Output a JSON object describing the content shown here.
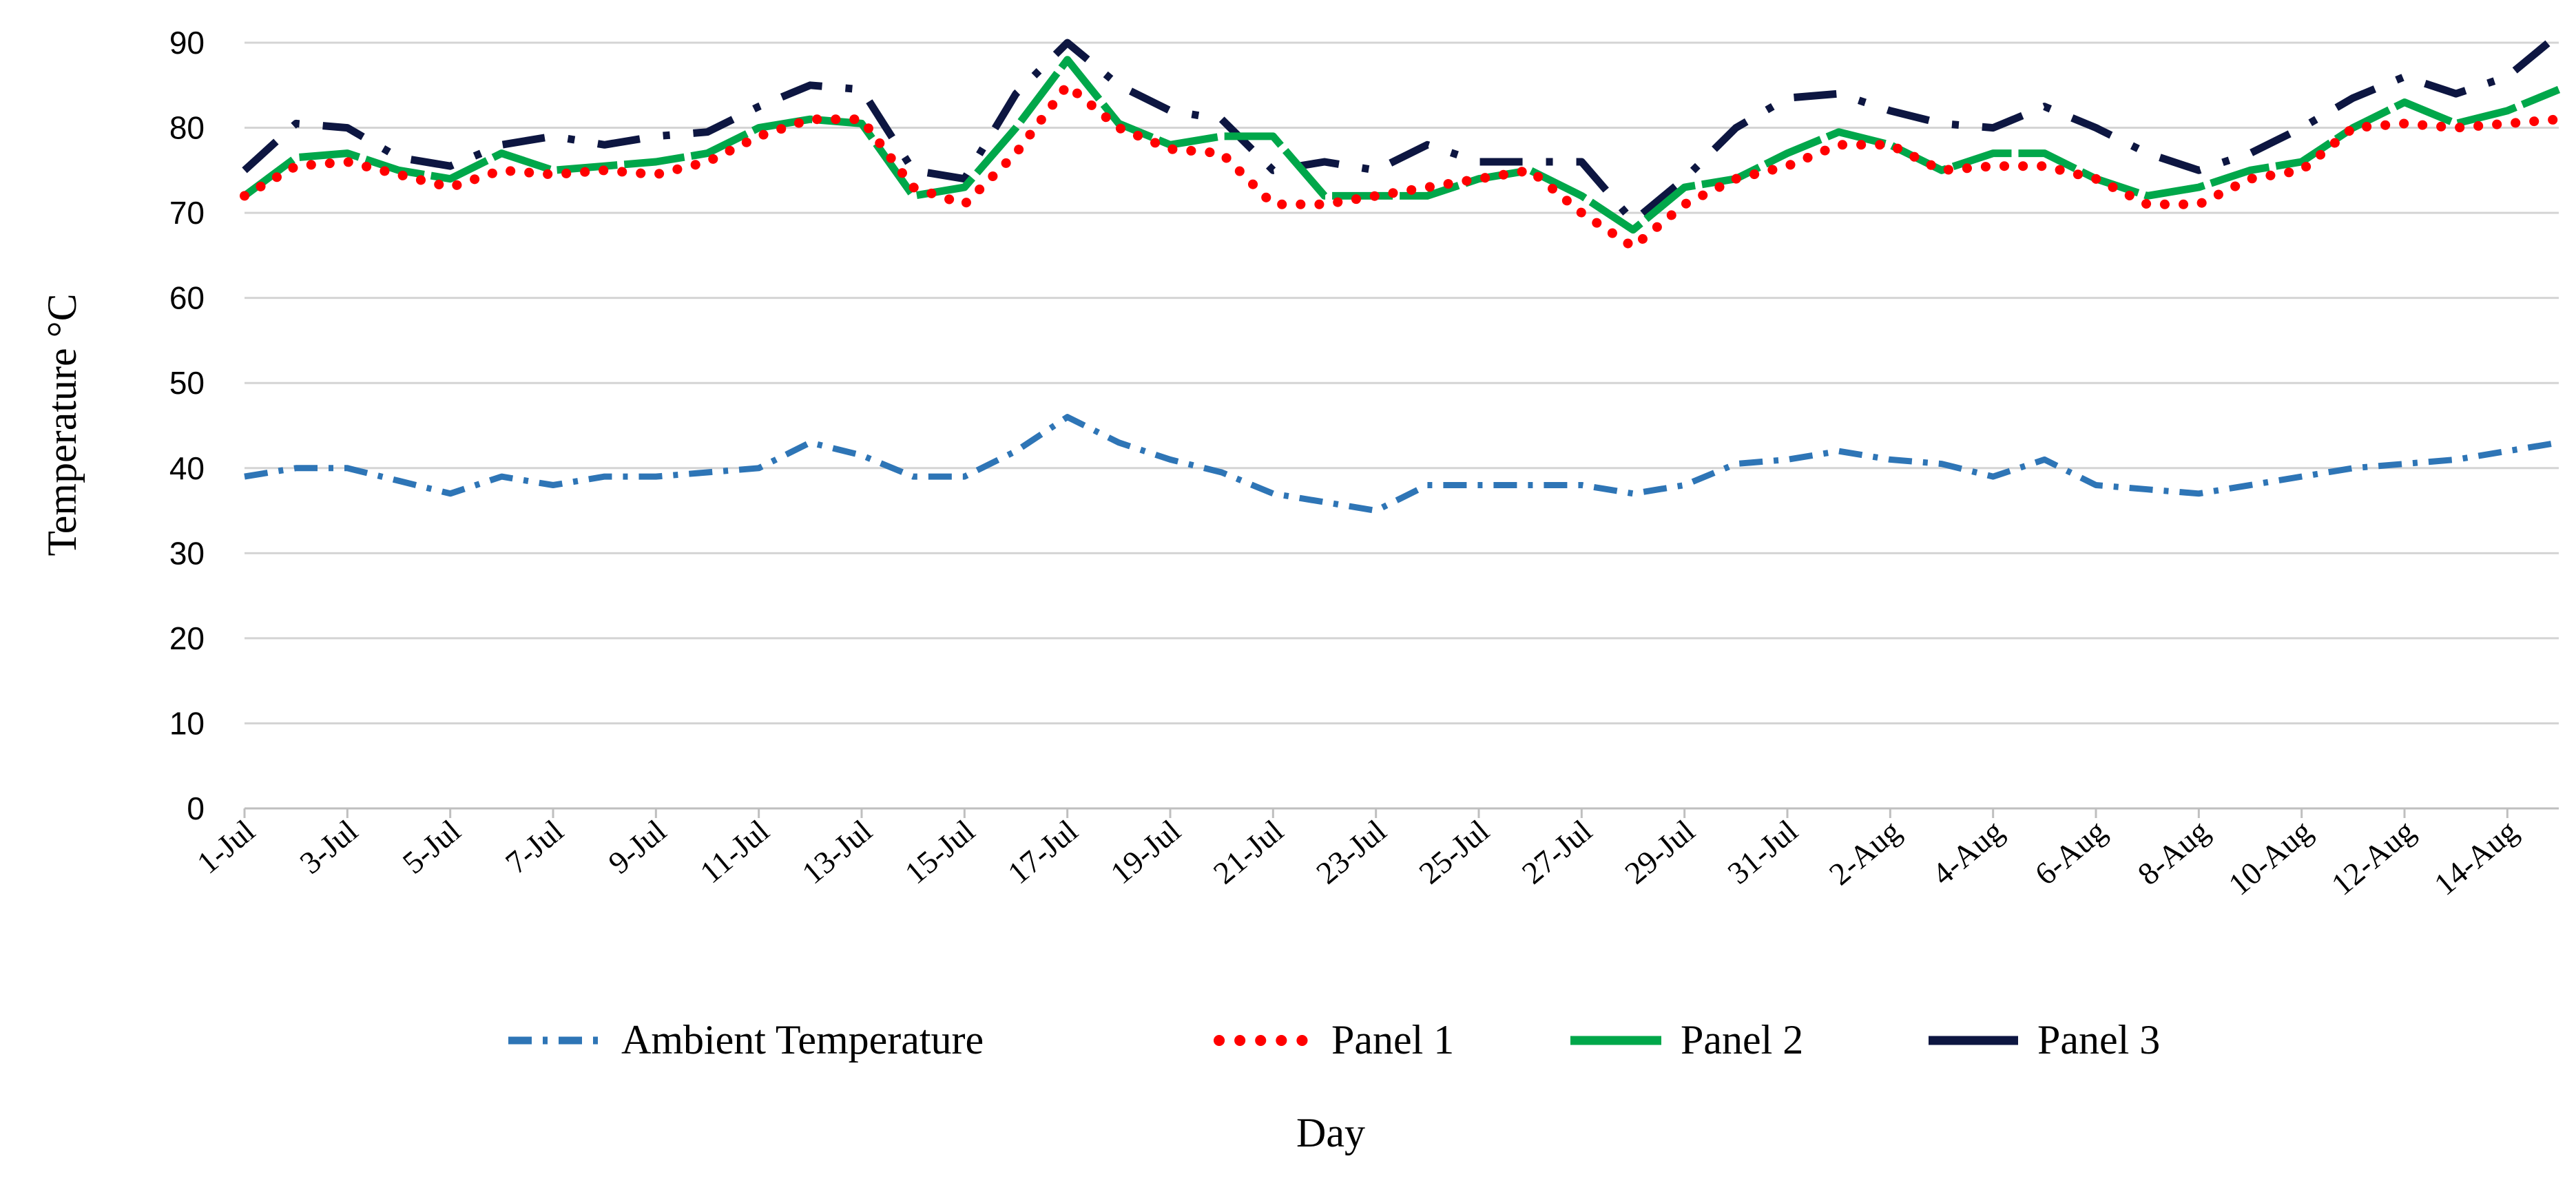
{
  "chart_data": {
    "type": "line",
    "title": "",
    "xlabel": "Day",
    "ylabel": "Temperature °C",
    "ylim": [
      0,
      90
    ],
    "yticks": [
      0,
      10,
      20,
      30,
      40,
      50,
      60,
      70,
      80,
      90
    ],
    "grid": true,
    "legend": "bottom",
    "categories": [
      "1-Jul",
      "2-Jul",
      "3-Jul",
      "4-Jul",
      "5-Jul",
      "6-Jul",
      "7-Jul",
      "8-Jul",
      "9-Jul",
      "10-Jul",
      "11-Jul",
      "12-Jul",
      "13-Jul",
      "14-Jul",
      "15-Jul",
      "16-Jul",
      "17-Jul",
      "18-Jul",
      "19-Jul",
      "20-Jul",
      "21-Jul",
      "22-Jul",
      "23-Jul",
      "24-Jul",
      "25-Jul",
      "26-Jul",
      "27-Jul",
      "28-Jul",
      "29-Jul",
      "30-Jul",
      "31-Jul",
      "1-Aug",
      "2-Aug",
      "3-Aug",
      "4-Aug",
      "5-Aug",
      "6-Aug",
      "7-Aug",
      "8-Aug",
      "9-Aug",
      "10-Aug",
      "11-Aug",
      "12-Aug",
      "13-Aug",
      "14-Aug",
      "15-Aug"
    ],
    "tick_labels": [
      "1-Jul",
      "3-Jul",
      "5-Jul",
      "7-Jul",
      "9-Jul",
      "11-Jul",
      "13-Jul",
      "15-Jul",
      "17-Jul",
      "19-Jul",
      "21-Jul",
      "23-Jul",
      "25-Jul",
      "27-Jul",
      "29-Jul",
      "31-Jul",
      "2-Aug",
      "4-Aug",
      "6-Aug",
      "8-Aug",
      "10-Aug",
      "12-Aug",
      "14-Aug"
    ],
    "series": [
      {
        "name": "Ambient Temperature",
        "color": "#2e75b6",
        "style": "dash-dot",
        "values": [
          39,
          40,
          40,
          38.5,
          37,
          39,
          38,
          39,
          39,
          39.5,
          40,
          43,
          41.5,
          39,
          39,
          42,
          46,
          43,
          41,
          39.5,
          37,
          36,
          35,
          38,
          38,
          38,
          38,
          37,
          38,
          40.5,
          41,
          42,
          41,
          40.5,
          39,
          41,
          38,
          37.5,
          37,
          38,
          39,
          40,
          40.5,
          41,
          42,
          43
        ]
      },
      {
        "name": "Panel 1",
        "color": "#ff0000",
        "style": "dotted",
        "values": [
          72,
          75.5,
          76,
          74.5,
          73,
          75,
          74.5,
          75,
          74.5,
          76,
          79,
          81,
          81,
          73,
          71,
          77,
          85,
          80,
          77.5,
          77,
          71,
          71,
          72,
          73,
          74,
          75,
          70,
          66,
          71,
          74,
          75.5,
          78,
          78,
          75,
          75.5,
          75.5,
          74,
          71,
          71,
          74,
          75,
          80,
          80.5,
          80,
          80.5,
          81
        ]
      },
      {
        "name": "Panel 2",
        "color": "#00a74a",
        "style": "solid",
        "values": [
          72,
          76.5,
          77,
          75,
          74,
          77,
          75,
          75.5,
          76,
          77,
          80,
          81,
          80.5,
          72,
          73,
          80,
          88,
          80.5,
          78,
          79,
          79,
          72,
          72,
          72,
          74,
          75,
          72,
          68,
          73,
          74,
          77,
          79.5,
          78,
          75,
          77,
          77,
          74,
          72,
          73,
          75,
          76,
          80,
          83,
          80.5,
          82,
          84.5
        ]
      },
      {
        "name": "Panel 3",
        "color": "#0d1641",
        "style": "long-dash",
        "values": [
          75,
          80.5,
          80,
          76.5,
          75.5,
          78,
          79,
          78,
          79,
          79.5,
          82.5,
          85,
          84.5,
          75,
          74,
          84,
          90,
          85,
          82,
          81,
          75,
          76,
          75,
          78,
          76,
          76,
          76,
          69,
          74,
          80,
          83.5,
          84,
          82,
          80.5,
          80,
          82.5,
          80,
          77,
          75,
          77,
          80,
          83.5,
          86,
          84,
          86,
          91
        ]
      }
    ]
  }
}
